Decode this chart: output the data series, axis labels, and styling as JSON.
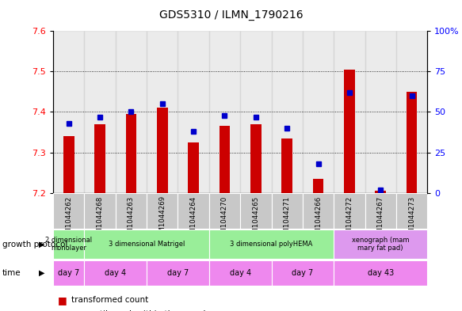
{
  "title": "GDS5310 / ILMN_1790216",
  "samples": [
    "GSM1044262",
    "GSM1044268",
    "GSM1044263",
    "GSM1044269",
    "GSM1044264",
    "GSM1044270",
    "GSM1044265",
    "GSM1044271",
    "GSM1044266",
    "GSM1044272",
    "GSM1044267",
    "GSM1044273"
  ],
  "transformed_count": [
    7.34,
    7.37,
    7.395,
    7.41,
    7.325,
    7.365,
    7.37,
    7.335,
    7.235,
    7.505,
    7.205,
    7.45
  ],
  "percentile_rank": [
    43,
    47,
    50,
    55,
    38,
    48,
    47,
    40,
    18,
    62,
    2,
    60
  ],
  "ylim_left": [
    7.2,
    7.6
  ],
  "ylim_right": [
    0,
    100
  ],
  "yticks_left": [
    7.2,
    7.3,
    7.4,
    7.5,
    7.6
  ],
  "yticks_right": [
    0,
    25,
    50,
    75,
    100
  ],
  "bar_color": "#cc0000",
  "dot_color": "#0000cc",
  "bar_bottom": 7.2,
  "protocol_groups": [
    {
      "label": "2 dimensional\nmonolayer",
      "start": 0,
      "end": 1,
      "color": "#99ee99"
    },
    {
      "label": "3 dimensional Matrigel",
      "start": 1,
      "end": 5,
      "color": "#99ee99"
    },
    {
      "label": "3 dimensional polyHEMA",
      "start": 5,
      "end": 9,
      "color": "#99ee99"
    },
    {
      "label": "xenograph (mam\nmary fat pad)",
      "start": 9,
      "end": 12,
      "color": "#dd99ee"
    }
  ],
  "time_groups": [
    {
      "label": "day 7",
      "start": 0,
      "end": 1
    },
    {
      "label": "day 4",
      "start": 1,
      "end": 3
    },
    {
      "label": "day 7",
      "start": 3,
      "end": 5
    },
    {
      "label": "day 4",
      "start": 5,
      "end": 7
    },
    {
      "label": "day 7",
      "start": 7,
      "end": 9
    },
    {
      "label": "day 43",
      "start": 9,
      "end": 12
    }
  ],
  "time_color": "#ee88ee",
  "protocol_row_label": "growth protocol",
  "time_row_label": "time",
  "sample_bg_color": "#c8c8c8",
  "bar_width": 0.35,
  "grid_yticks": [
    7.3,
    7.4,
    7.5
  ]
}
